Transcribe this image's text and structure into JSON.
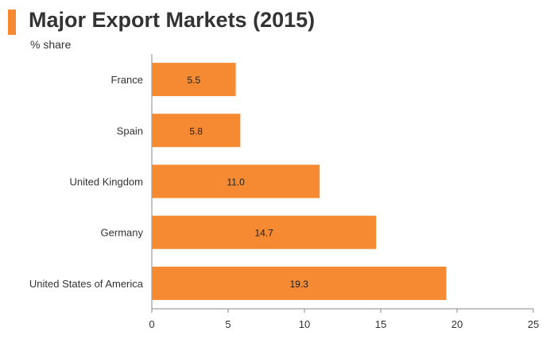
{
  "chart_data": {
    "type": "bar",
    "orientation": "horizontal",
    "title": "Major Export Markets (2015)",
    "subtitle": "% share",
    "categories": [
      "France",
      "Spain",
      "United Kingdom",
      "Germany",
      "United States of America"
    ],
    "values": [
      5.5,
      5.8,
      11.0,
      14.7,
      19.3
    ],
    "value_labels": [
      "5.5",
      "5.8",
      "11.0",
      "14.7",
      "19.3"
    ],
    "xlim": [
      0,
      25
    ],
    "xticks": [
      0,
      5,
      10,
      15,
      20,
      25
    ],
    "grid": false,
    "bar_color": "#f58a33",
    "accent_color": "#f58a33"
  }
}
